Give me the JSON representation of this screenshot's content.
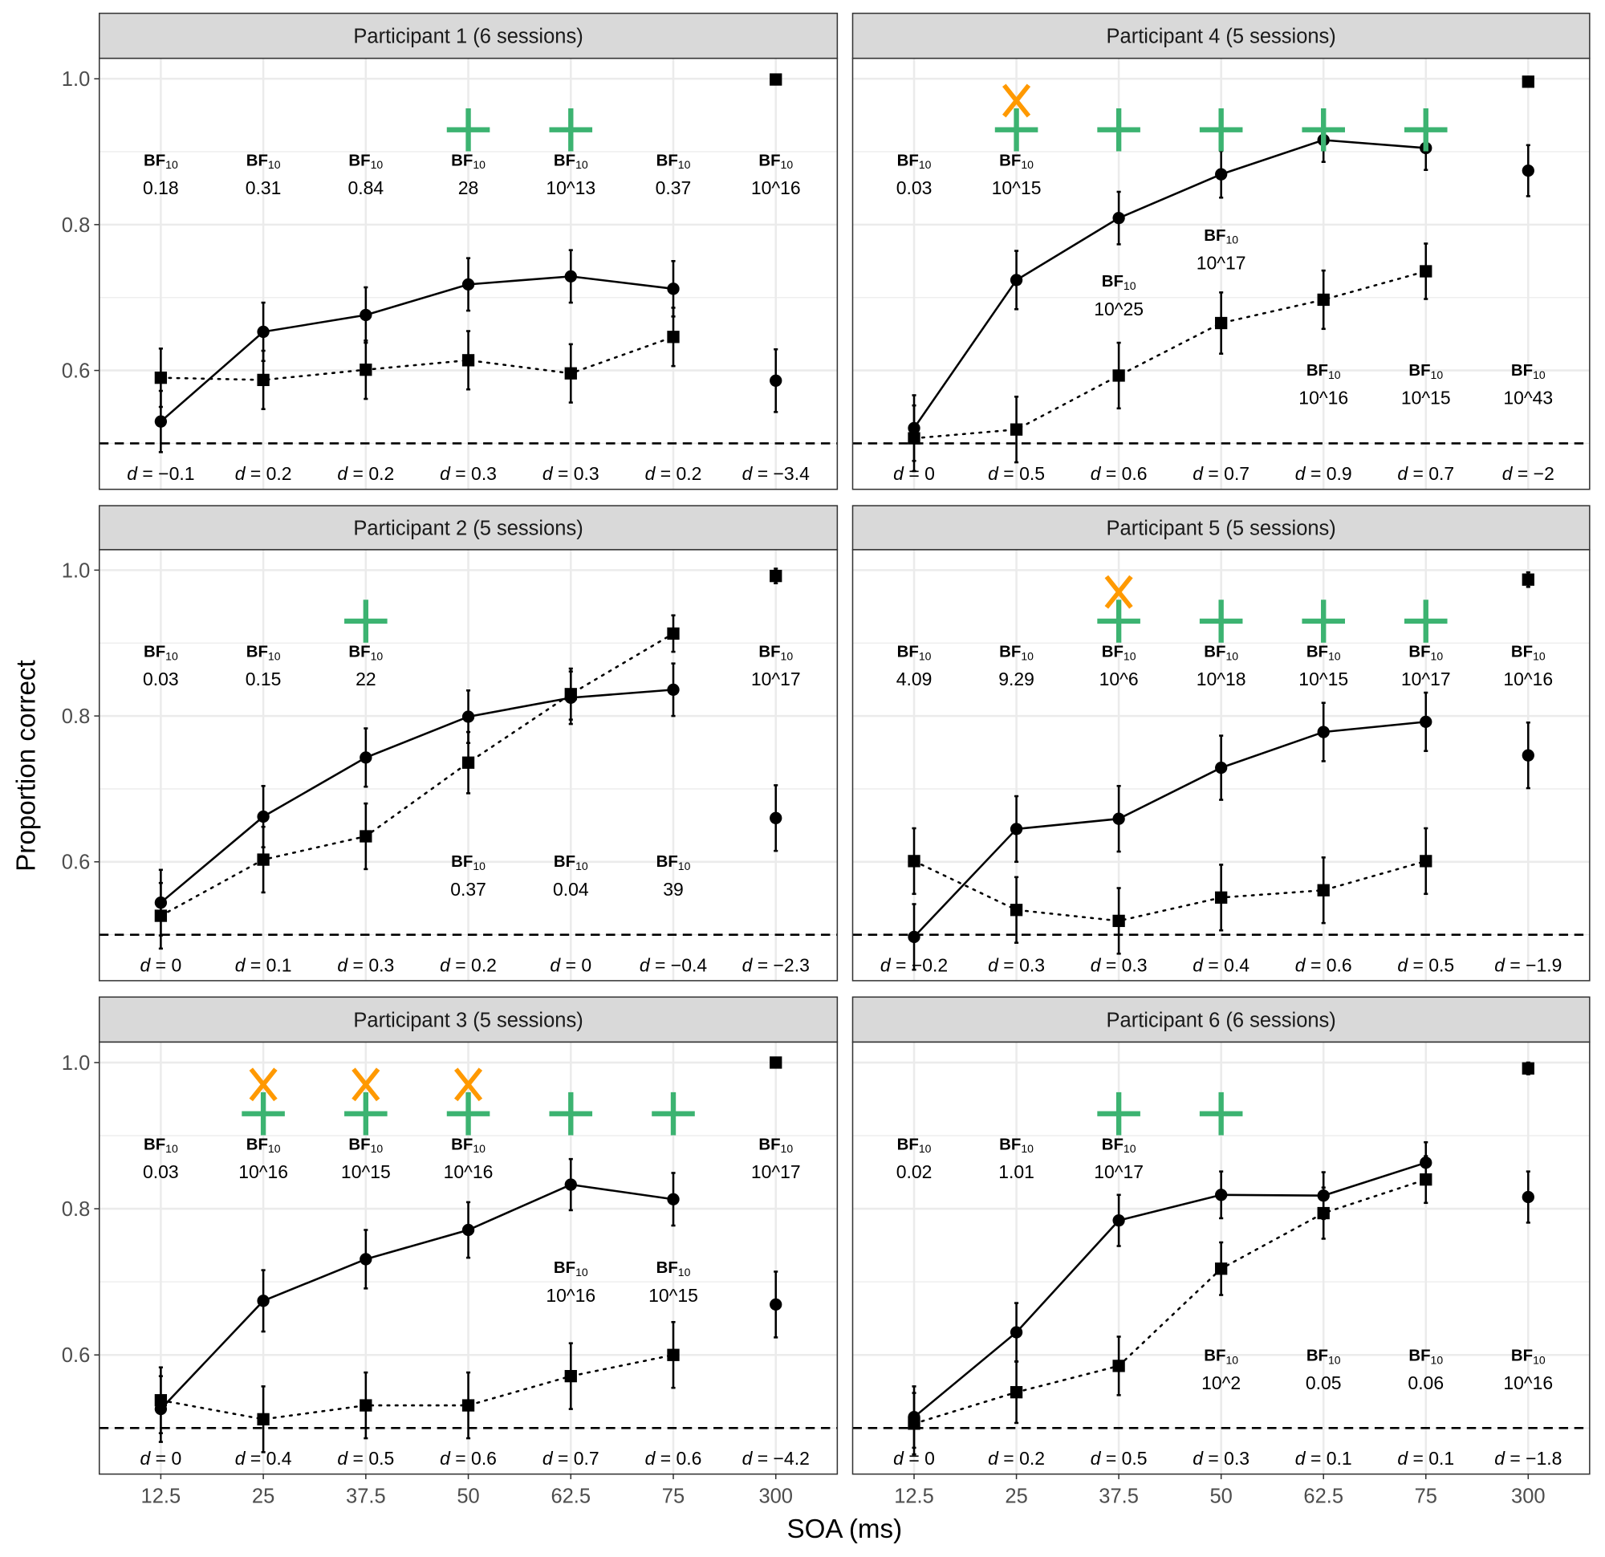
{
  "chart_data": {
    "type": "line",
    "xlabel": "SOA (ms)",
    "ylabel": "Proportion correct",
    "categories": [
      "12.5",
      "25",
      "37.5",
      "50",
      "62.5",
      "75",
      "300"
    ],
    "ylim": [
      0.437,
      1.028
    ],
    "yticks": [
      "0.6",
      "0.8",
      "1.0"
    ],
    "ytick_values": [
      0.6,
      0.8,
      1.0
    ],
    "chance_line": 0.5,
    "grid": true,
    "bf_label": "BF",
    "bf_sub": "10",
    "d_prefix": "d",
    "colors": {
      "plus": "#3cb371",
      "cross": "#ff9900",
      "line": "#000000"
    },
    "panels": [
      {
        "title": "Participant 1 (6 sessions)",
        "solid_circles": [
          0.53,
          0.653,
          0.676,
          0.718,
          0.729,
          0.712,
          0.586
        ],
        "solid_err": [
          0.042,
          0.04,
          0.038,
          0.036,
          0.036,
          0.038,
          0.043
        ],
        "dotted_squares": [
          0.59,
          0.587,
          0.601,
          0.614,
          0.596,
          0.646,
          0.999
        ],
        "dotted_err": [
          0.04,
          0.04,
          0.04,
          0.04,
          0.04,
          0.04,
          0.003
        ],
        "bf": [
          "0.18",
          "0.31",
          "0.84",
          "28",
          "10^13",
          "0.37",
          "10^16"
        ],
        "bf_y": [
          0.888,
          0.888,
          0.888,
          0.888,
          0.888,
          0.888,
          0.888
        ],
        "d": [
          "−0.1",
          "0.2",
          "0.2",
          "0.3",
          "0.3",
          "0.2",
          "−3.4"
        ],
        "plus": [
          "50",
          "62.5"
        ],
        "cross": []
      },
      {
        "title": "Participant 4 (5 sessions)",
        "solid_circles": [
          0.521,
          0.724,
          0.809,
          0.869,
          0.916,
          0.905,
          0.874
        ],
        "solid_err": [
          0.045,
          0.04,
          0.036,
          0.032,
          0.03,
          0.03,
          0.035
        ],
        "dotted_squares": [
          0.507,
          0.519,
          0.593,
          0.665,
          0.697,
          0.736,
          0.996
        ],
        "dotted_err": [
          0.045,
          0.045,
          0.045,
          0.042,
          0.04,
          0.038,
          0.005
        ],
        "bf": [
          "0.03",
          "10^15",
          "10^25",
          "10^17",
          "10^16",
          "10^15",
          "10^43"
        ],
        "bf_y": [
          0.888,
          0.888,
          0.722,
          0.785,
          0.6,
          0.6,
          0.6
        ],
        "d": [
          "0",
          "0.5",
          "0.6",
          "0.7",
          "0.9",
          "0.7",
          "−2"
        ],
        "plus": [
          "25",
          "37.5",
          "50",
          "62.5",
          "75"
        ],
        "cross": [
          "25"
        ]
      },
      {
        "title": "Participant 2 (5 sessions)",
        "solid_circles": [
          0.544,
          0.662,
          0.743,
          0.799,
          0.825,
          0.836,
          0.66
        ],
        "solid_err": [
          0.045,
          0.042,
          0.04,
          0.036,
          0.036,
          0.036,
          0.045
        ],
        "dotted_squares": [
          0.526,
          0.603,
          0.635,
          0.736,
          0.83,
          0.913,
          0.992
        ],
        "dotted_err": [
          0.045,
          0.045,
          0.045,
          0.042,
          0.035,
          0.025,
          0.01
        ],
        "bf": [
          "0.03",
          "0.15",
          "22",
          "0.37",
          "0.04",
          "39",
          "10^17"
        ],
        "bf_y": [
          0.888,
          0.888,
          0.888,
          0.6,
          0.6,
          0.6,
          0.888
        ],
        "d": [
          "0",
          "0.1",
          "0.3",
          "0.2",
          "0",
          "−0.4",
          "−2.3"
        ],
        "plus": [
          "37.5"
        ],
        "cross": []
      },
      {
        "title": "Participant 5 (5 sessions)",
        "solid_circles": [
          0.497,
          0.645,
          0.659,
          0.729,
          0.778,
          0.792,
          0.746
        ],
        "solid_err": [
          0.045,
          0.045,
          0.045,
          0.044,
          0.04,
          0.04,
          0.045
        ],
        "dotted_squares": [
          0.601,
          0.534,
          0.519,
          0.551,
          0.561,
          0.601,
          0.987
        ],
        "dotted_err": [
          0.045,
          0.045,
          0.045,
          0.045,
          0.045,
          0.045,
          0.01
        ],
        "bf": [
          "4.09",
          "9.29",
          "10^6",
          "10^18",
          "10^15",
          "10^17",
          "10^16"
        ],
        "bf_y": [
          0.888,
          0.888,
          0.888,
          0.888,
          0.888,
          0.888,
          0.888
        ],
        "d": [
          "−0.2",
          "0.3",
          "0.3",
          "0.4",
          "0.6",
          "0.5",
          "−1.9"
        ],
        "plus": [
          "37.5",
          "50",
          "62.5",
          "75"
        ],
        "cross": [
          "37.5"
        ]
      },
      {
        "title": "Participant 3 (5 sessions)",
        "solid_circles": [
          0.526,
          0.674,
          0.731,
          0.771,
          0.833,
          0.813,
          0.669
        ],
        "solid_err": [
          0.045,
          0.042,
          0.04,
          0.038,
          0.035,
          0.036,
          0.045
        ],
        "dotted_squares": [
          0.538,
          0.512,
          0.531,
          0.531,
          0.571,
          0.6,
          1.0
        ],
        "dotted_err": [
          0.045,
          0.045,
          0.045,
          0.045,
          0.045,
          0.045,
          0.002
        ],
        "bf": [
          "0.03",
          "10^16",
          "10^15",
          "10^16",
          "10^16",
          "10^15",
          "10^17"
        ],
        "bf_y": [
          0.888,
          0.888,
          0.888,
          0.888,
          0.719,
          0.719,
          0.888
        ],
        "d": [
          "0",
          "0.4",
          "0.5",
          "0.6",
          "0.7",
          "0.6",
          "−4.2"
        ],
        "plus": [
          "25",
          "37.5",
          "50",
          "62.5",
          "75"
        ],
        "cross": [
          "25",
          "37.5",
          "50"
        ]
      },
      {
        "title": "Participant 6 (6 sessions)",
        "solid_circles": [
          0.515,
          0.631,
          0.784,
          0.819,
          0.818,
          0.863,
          0.816
        ],
        "solid_err": [
          0.042,
          0.04,
          0.035,
          0.032,
          0.032,
          0.028,
          0.035
        ],
        "dotted_squares": [
          0.506,
          0.549,
          0.585,
          0.718,
          0.794,
          0.84,
          0.992
        ],
        "dotted_err": [
          0.042,
          0.042,
          0.04,
          0.036,
          0.035,
          0.032,
          0.008
        ],
        "bf": [
          "0.02",
          "1.01",
          "10^17",
          "10^2",
          "0.05",
          "0.06",
          "10^16"
        ],
        "bf_y": [
          0.888,
          0.888,
          0.888,
          0.599,
          0.599,
          0.599,
          0.599
        ],
        "d": [
          "0",
          "0.2",
          "0.5",
          "0.3",
          "0.1",
          "0.1",
          "−1.8"
        ],
        "plus": [
          "37.5",
          "50"
        ],
        "cross": []
      }
    ]
  }
}
